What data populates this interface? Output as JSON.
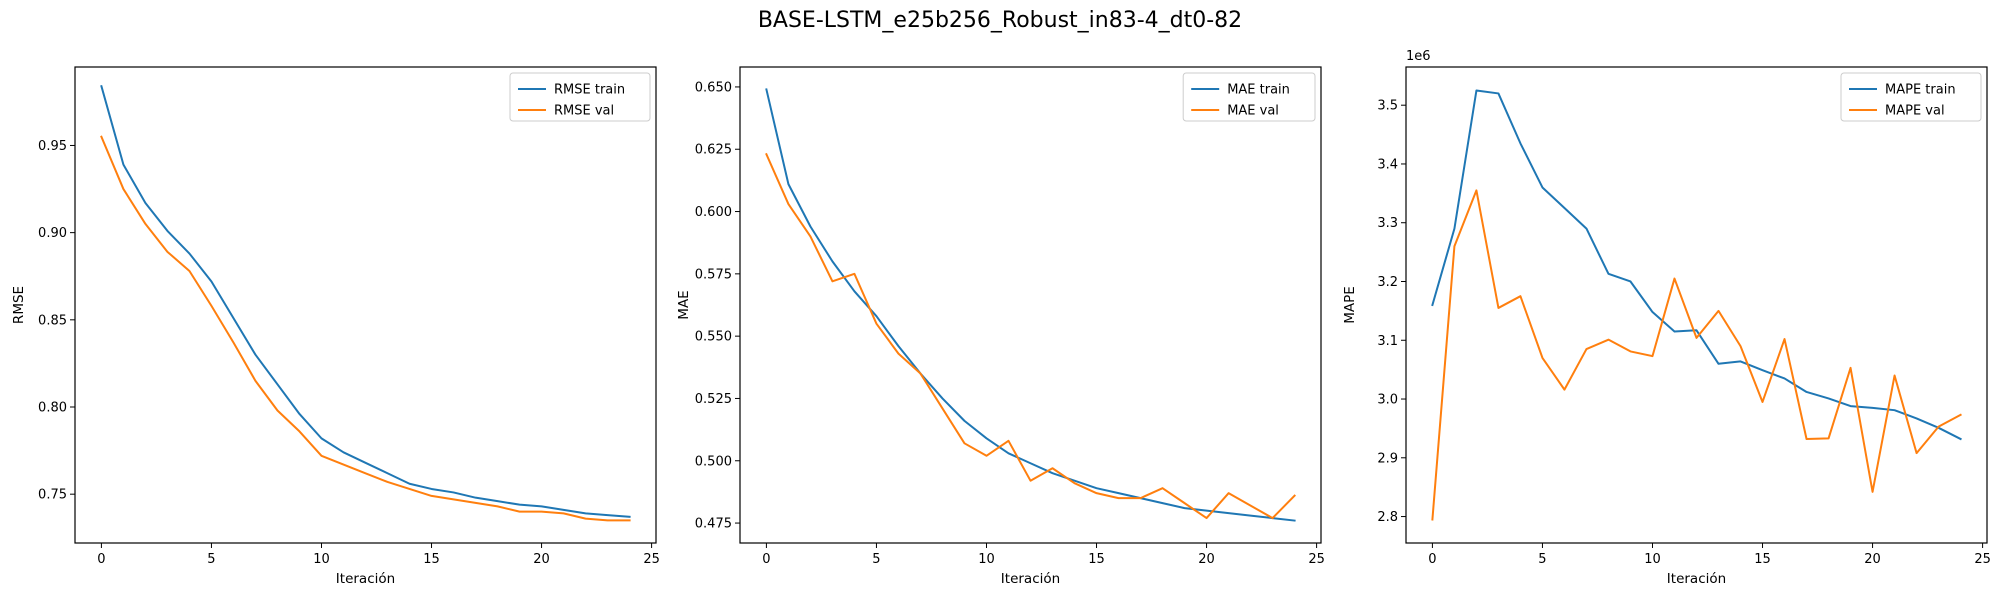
{
  "figure": {
    "suptitle": "BASE-LSTM_e25b256_Robust_in83-4_dt0-82"
  },
  "colors": {
    "train": "#1f77b4",
    "val": "#ff7f0e",
    "axes": "#000000",
    "legend_border": "#cccccc"
  },
  "chart_data": [
    {
      "type": "line",
      "title": "",
      "xlabel": "Iteración",
      "ylabel": "RMSE",
      "offset_label": "",
      "xlim": [
        -1.2,
        25.2
      ],
      "ylim": [
        0.722,
        0.995
      ],
      "xticks": [
        0,
        5,
        10,
        15,
        20,
        25
      ],
      "yticks": [
        0.75,
        0.8,
        0.85,
        0.9,
        0.95
      ],
      "ytick_labels": [
        "0.75",
        "0.80",
        "0.85",
        "0.90",
        "0.95"
      ],
      "grid": false,
      "legend": "top-right",
      "x": [
        0,
        1,
        2,
        3,
        4,
        5,
        6,
        7,
        8,
        9,
        10,
        11,
        12,
        13,
        14,
        15,
        16,
        17,
        18,
        19,
        20,
        21,
        22,
        23,
        24
      ],
      "series": [
        {
          "name": "RMSE train",
          "color": "#1f77b4",
          "values": [
            0.984,
            0.939,
            0.917,
            0.901,
            0.888,
            0.872,
            0.851,
            0.83,
            0.813,
            0.796,
            0.782,
            0.774,
            0.768,
            0.762,
            0.756,
            0.753,
            0.751,
            0.748,
            0.746,
            0.744,
            0.743,
            0.741,
            0.739,
            0.738,
            0.737
          ]
        },
        {
          "name": "RMSE val",
          "color": "#ff7f0e",
          "values": [
            0.955,
            0.925,
            0.905,
            0.889,
            0.878,
            0.858,
            0.837,
            0.815,
            0.798,
            0.786,
            0.772,
            0.767,
            0.762,
            0.757,
            0.753,
            0.749,
            0.747,
            0.745,
            0.743,
            0.74,
            0.74,
            0.739,
            0.736,
            0.735,
            0.735
          ]
        }
      ]
    },
    {
      "type": "line",
      "title": "",
      "xlabel": "Iteración",
      "ylabel": "MAE",
      "offset_label": "",
      "xlim": [
        -1.2,
        25.2
      ],
      "ylim": [
        0.467,
        0.658
      ],
      "xticks": [
        0,
        5,
        10,
        15,
        20,
        25
      ],
      "yticks": [
        0.475,
        0.5,
        0.525,
        0.55,
        0.575,
        0.6,
        0.625,
        0.65
      ],
      "ytick_labels": [
        "0.475",
        "0.500",
        "0.525",
        "0.550",
        "0.575",
        "0.600",
        "0.625",
        "0.650"
      ],
      "grid": false,
      "legend": "top-right",
      "x": [
        0,
        1,
        2,
        3,
        4,
        5,
        6,
        7,
        8,
        9,
        10,
        11,
        12,
        13,
        14,
        15,
        16,
        17,
        18,
        19,
        20,
        21,
        22,
        23,
        24
      ],
      "series": [
        {
          "name": "MAE train",
          "color": "#1f77b4",
          "values": [
            0.649,
            0.611,
            0.594,
            0.58,
            0.568,
            0.558,
            0.546,
            0.535,
            0.525,
            0.516,
            0.509,
            0.503,
            0.499,
            0.495,
            0.492,
            0.489,
            0.487,
            0.485,
            0.483,
            0.481,
            0.48,
            0.479,
            0.478,
            0.477,
            0.476
          ]
        },
        {
          "name": "MAE val",
          "color": "#ff7f0e",
          "values": [
            0.623,
            0.603,
            0.59,
            0.572,
            0.575,
            0.555,
            0.543,
            0.535,
            0.521,
            0.507,
            0.502,
            0.508,
            0.492,
            0.497,
            0.491,
            0.487,
            0.485,
            0.485,
            0.489,
            0.483,
            0.477,
            0.487,
            0.482,
            0.477,
            0.486
          ]
        }
      ]
    },
    {
      "type": "line",
      "title": "",
      "xlabel": "Iteración",
      "ylabel": "MAPE",
      "offset_label": "1e6",
      "xlim": [
        -1.2,
        25.2
      ],
      "ylim": [
        2.755,
        3.565
      ],
      "xticks": [
        0,
        5,
        10,
        15,
        20,
        25
      ],
      "yticks": [
        2.8,
        2.9,
        3.0,
        3.1,
        3.2,
        3.3,
        3.4,
        3.5
      ],
      "ytick_labels": [
        "2.8",
        "2.9",
        "3.0",
        "3.1",
        "3.2",
        "3.3",
        "3.4",
        "3.5"
      ],
      "grid": false,
      "legend": "top-right",
      "x": [
        0,
        1,
        2,
        3,
        4,
        5,
        6,
        7,
        8,
        9,
        10,
        11,
        12,
        13,
        14,
        15,
        16,
        17,
        18,
        19,
        20,
        21,
        22,
        23,
        24
      ],
      "series": [
        {
          "name": "MAPE train",
          "color": "#1f77b4",
          "values": [
            3.16,
            3.29,
            3.525,
            3.52,
            3.435,
            3.36,
            3.325,
            3.29,
            3.213,
            3.2,
            3.148,
            3.115,
            3.117,
            3.06,
            3.064,
            3.049,
            3.035,
            3.012,
            3.001,
            2.988,
            2.985,
            2.981,
            2.967,
            2.951,
            2.932
          ]
        },
        {
          "name": "MAPE val",
          "color": "#ff7f0e",
          "values": [
            2.795,
            3.26,
            3.355,
            3.155,
            3.175,
            3.07,
            3.016,
            3.085,
            3.101,
            3.081,
            3.073,
            3.205,
            3.104,
            3.15,
            3.09,
            2.995,
            3.102,
            2.932,
            2.933,
            3.053,
            2.842,
            3.04,
            2.908,
            2.953,
            2.973
          ]
        }
      ]
    }
  ]
}
